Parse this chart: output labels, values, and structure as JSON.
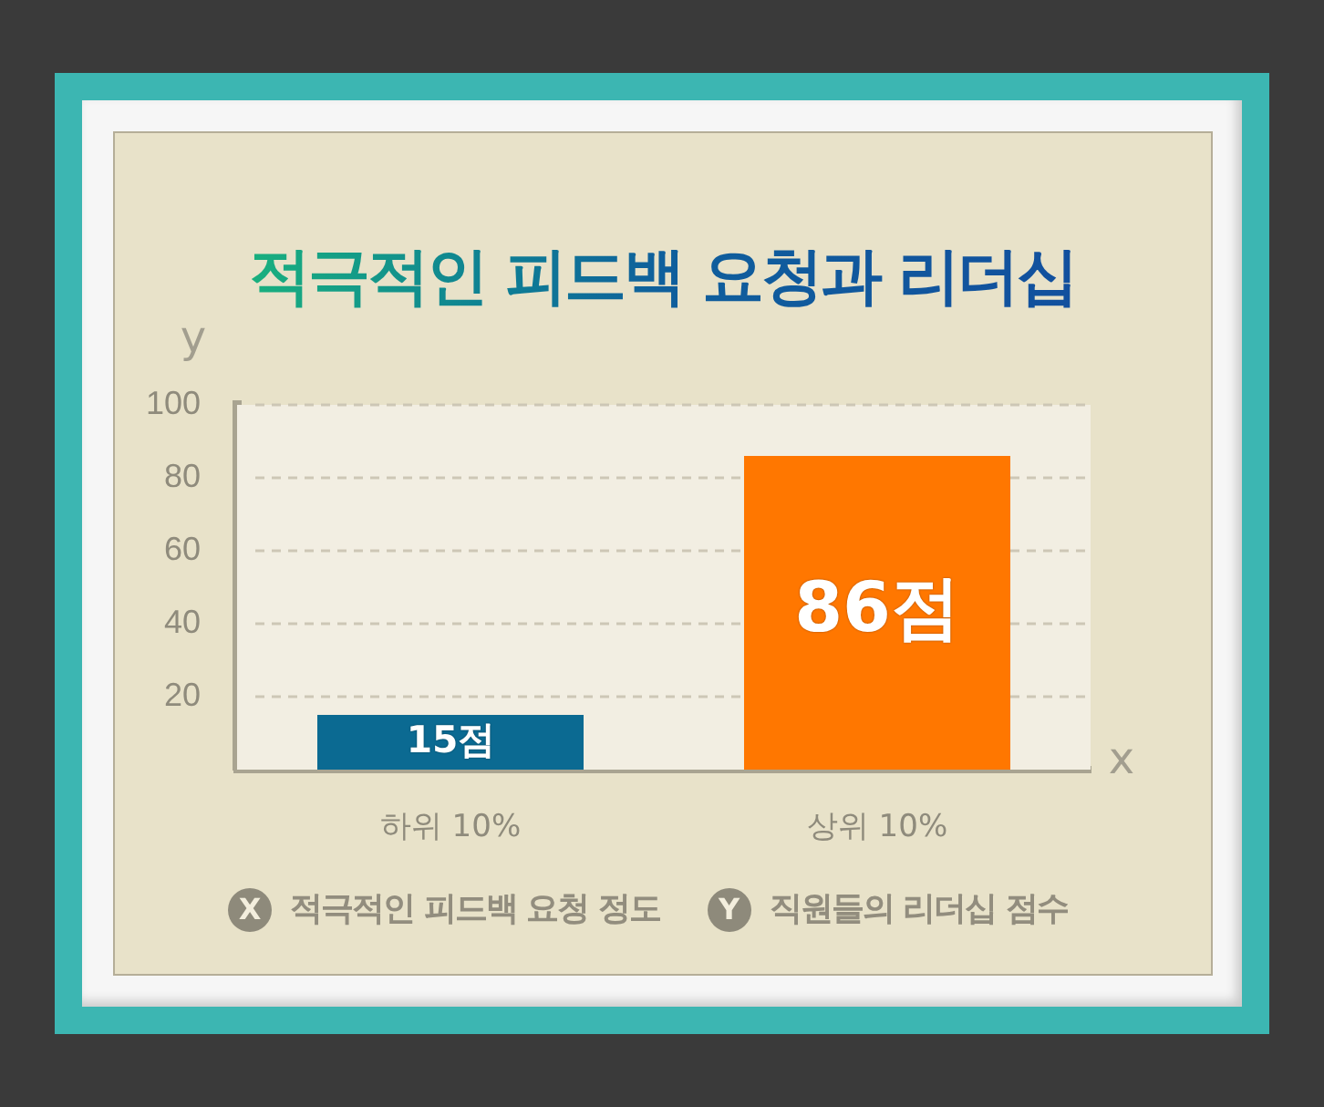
{
  "chart_data": {
    "type": "bar",
    "title": "적극적인 피드백 요청과 리더십",
    "xlabel": "x",
    "ylabel": "y",
    "categories": [
      "하위 10%",
      "상위 10%"
    ],
    "values": [
      15,
      86
    ],
    "colors": [
      "#0b6a92",
      "#ff7700"
    ],
    "value_labels": [
      "15점",
      "86점"
    ],
    "ylim": [
      0,
      100
    ],
    "yticks": [
      20,
      40,
      60,
      80,
      100
    ],
    "grid": "y",
    "annotations": [
      "X",
      "적극적인 피드백 요청 정도",
      "Y",
      "직원들의 리더십 점수"
    ]
  }
}
